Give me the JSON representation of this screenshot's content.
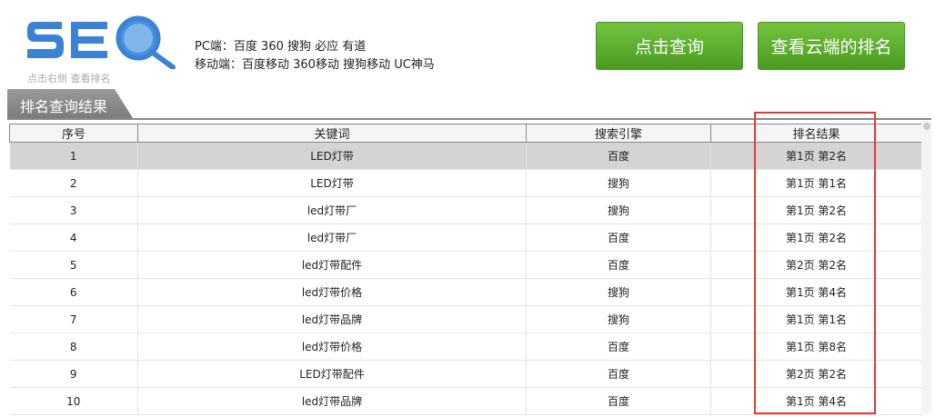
{
  "logo": {
    "text": "SEO",
    "subtitle": "点击右侧 查看排名",
    "color": "#3b82d6"
  },
  "platforms": {
    "pc": "PC端：百度 360 搜狗 必应 有道",
    "mobile": "移动端：百度移动 360移动 搜狗移动 UC神马"
  },
  "buttons": {
    "query": "点击查询",
    "cloud": "查看云端的排名"
  },
  "tab": "排名查询结果",
  "table": {
    "headers": [
      "序号",
      "关键词",
      "搜索引擎",
      "排名结果"
    ],
    "rows": [
      [
        "1",
        "LED灯带",
        "百度",
        "第1页 第2名"
      ],
      [
        "2",
        "LED灯带",
        "搜狗",
        "第1页 第1名"
      ],
      [
        "3",
        "led灯带厂",
        "搜狗",
        "第1页 第2名"
      ],
      [
        "4",
        "led灯带厂",
        "百度",
        "第1页 第2名"
      ],
      [
        "5",
        "led灯带配件",
        "百度",
        "第2页 第2名"
      ],
      [
        "6",
        "led灯带价格",
        "搜狗",
        "第1页 第4名"
      ],
      [
        "7",
        "led灯带品牌",
        "搜狗",
        "第1页 第1名"
      ],
      [
        "8",
        "led灯带价格",
        "百度",
        "第1页 第8名"
      ],
      [
        "9",
        "LED灯带配件",
        "百度",
        "第2页 第2名"
      ],
      [
        "10",
        "led灯带品牌",
        "百度",
        "第1页 第4名"
      ]
    ]
  },
  "highlight_color": "#e53935"
}
